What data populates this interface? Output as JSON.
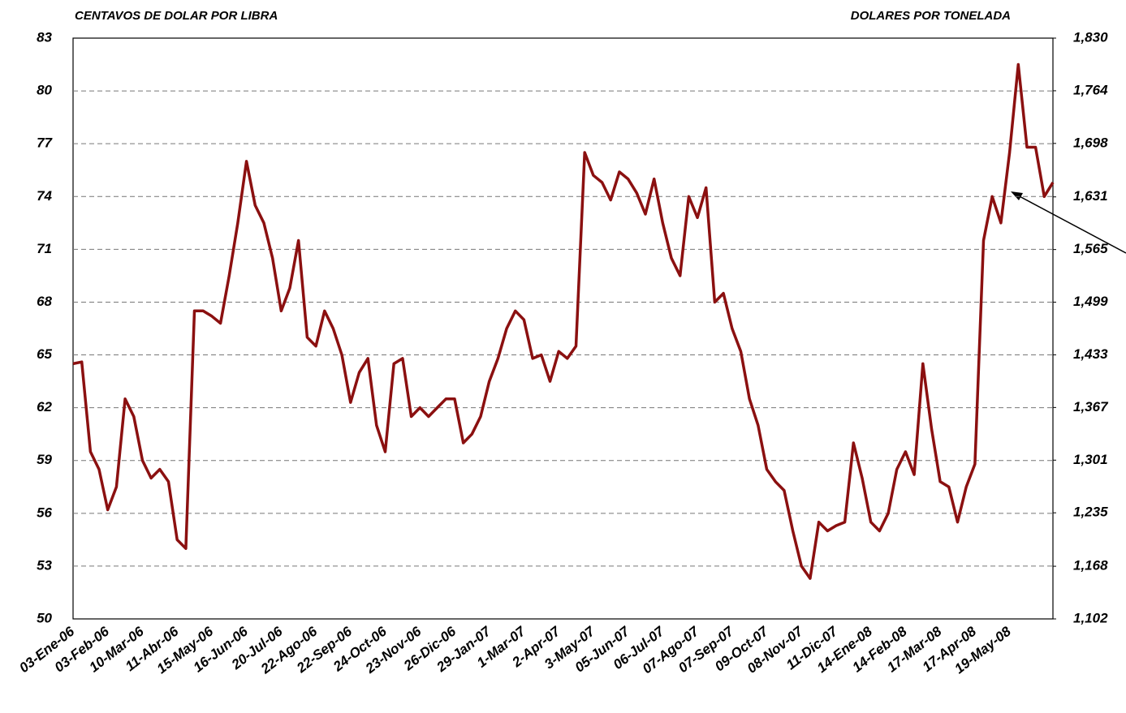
{
  "chart_data": {
    "type": "line",
    "y_label": "CENTAVOS DE DOLAR POR LIBRA",
    "y2_label": "DOLARES POR TONELADA",
    "categories": [
      "03-Ene-06",
      null,
      null,
      null,
      "03-Feb-06",
      null,
      null,
      null,
      "10-Mar-06",
      null,
      null,
      null,
      "11-Abr-06",
      null,
      null,
      null,
      "15-May-06",
      null,
      null,
      null,
      "16-Jun-06",
      null,
      null,
      null,
      "20-Jul-06",
      null,
      null,
      null,
      "22-Ago-06",
      null,
      null,
      null,
      "22-Sep-06",
      null,
      null,
      null,
      "24-Oct-06",
      null,
      null,
      null,
      "23-Nov-06",
      null,
      null,
      null,
      "26-Dic-06",
      null,
      null,
      null,
      "29-Jan-07",
      null,
      null,
      null,
      "1-Mar-07",
      null,
      null,
      null,
      "2-Apr-07",
      null,
      null,
      null,
      "3-May-07",
      null,
      null,
      null,
      "05-Jun-07",
      null,
      null,
      null,
      "06-Jul-07",
      null,
      null,
      null,
      "07-Ago-07",
      null,
      null,
      null,
      "07-Sep-07",
      null,
      null,
      null,
      "09-Oct-07",
      null,
      null,
      null,
      "08-Nov-07",
      null,
      null,
      null,
      "11-Dic-07",
      null,
      null,
      null,
      "14-Ene-08",
      null,
      null,
      null,
      "14-Feb-08",
      null,
      null,
      null,
      "17-Mar-08",
      null,
      null,
      null,
      "17-Apr-08",
      null,
      null,
      null,
      "19-May-08",
      null,
      null,
      null,
      null,
      null
    ],
    "series": [
      {
        "color": "#8b1010",
        "axis": "y",
        "values": [
          64.5,
          64.6,
          59.5,
          58.5,
          56.2,
          57.5,
          62.5,
          61.5,
          59,
          58,
          58.5,
          57.8,
          54.5,
          54,
          67.5,
          67.5,
          67.2,
          66.8,
          69.5,
          72.5,
          76,
          73.5,
          72.5,
          70.5,
          67.5,
          68.8,
          71.5,
          66,
          65.5,
          67.5,
          66.5,
          65,
          62.3,
          64,
          64.8,
          61,
          59.5,
          64.5,
          64.8,
          61.5,
          62,
          61.5,
          62,
          62.5,
          62.5,
          60,
          60.5,
          61.5,
          63.5,
          64.8,
          66.5,
          67.5,
          67,
          64.8,
          65,
          63.5,
          65.2,
          64.8,
          65.5,
          76.5,
          75.2,
          74.8,
          73.8,
          75.4,
          75,
          74.2,
          73,
          75,
          72.5,
          70.5,
          69.5,
          74,
          72.8,
          74.5,
          68,
          68.5,
          66.5,
          65.2,
          62.5,
          61,
          58.5,
          57.8,
          57.3,
          55,
          53,
          52.3,
          55.5,
          55,
          55.3,
          55.5,
          60,
          58,
          55.5,
          55,
          56,
          58.5,
          59.5,
          58.2,
          64.5,
          60.8,
          57.8,
          57.5,
          55.5,
          57.5,
          58.8,
          71.5,
          74,
          72.5,
          76.5,
          81.5,
          76.8,
          76.8,
          74,
          74.8
        ]
      }
    ],
    "ylim": [
      50,
      83
    ],
    "yticks": [
      50,
      53,
      56,
      59,
      62,
      65,
      68,
      71,
      74,
      77,
      80,
      83
    ],
    "y2lim": [
      1102,
      1830
    ],
    "y2ticks": [
      {
        "value": 1102,
        "label": "1,102"
      },
      {
        "value": 1168,
        "label": "1,168"
      },
      {
        "value": 1235,
        "label": "1,235"
      },
      {
        "value": 1301,
        "label": "1,301"
      },
      {
        "value": 1367,
        "label": "1,367"
      },
      {
        "value": 1433,
        "label": "1,433"
      },
      {
        "value": 1499,
        "label": "1,499"
      },
      {
        "value": 1565,
        "label": "1,565"
      },
      {
        "value": 1631,
        "label": "1,631"
      },
      {
        "value": 1698,
        "label": "1,698"
      },
      {
        "value": 1764,
        "label": "1,764"
      },
      {
        "value": 1830,
        "label": "1,830"
      }
    ],
    "grid": true
  }
}
